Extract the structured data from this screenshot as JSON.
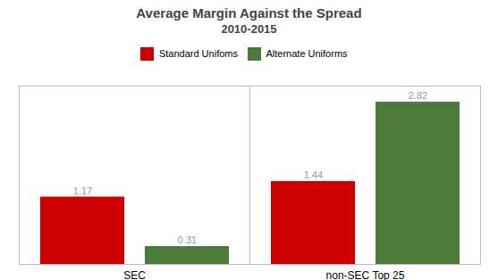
{
  "chart_data": {
    "type": "bar",
    "title": "Average Margin Against the Spread",
    "subtitle": "2010-2015",
    "categories": [
      "SEC",
      "non-SEC Top 25"
    ],
    "series": [
      {
        "name": "Standard Unifoms",
        "color": "#CC0000",
        "values": [
          1.17,
          1.44
        ]
      },
      {
        "name": "Alternate Uniforms",
        "color": "#4B7A3A",
        "values": [
          0.31,
          2.82
        ]
      }
    ],
    "ylim": [
      0,
      3.1
    ],
    "tick_labels": "x",
    "data_labels": true,
    "grid": false,
    "legend": "top"
  }
}
